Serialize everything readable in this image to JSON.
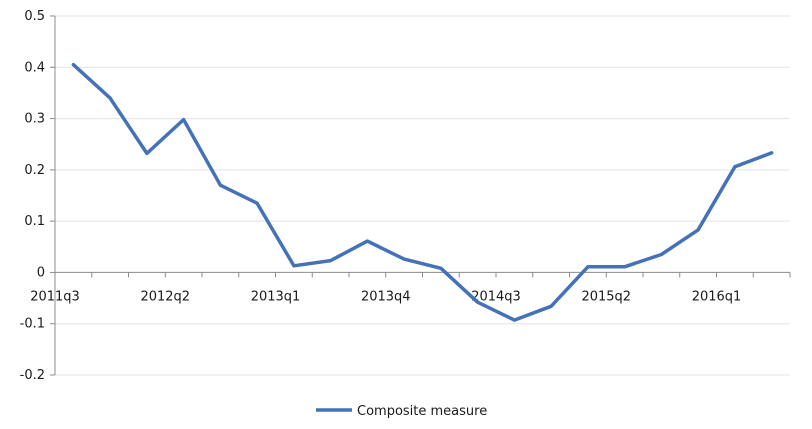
{
  "chart_data": {
    "type": "line",
    "title": "",
    "xlabel": "",
    "ylabel": "",
    "x": [
      "2011q3",
      "2011q4",
      "2012q1",
      "2012q2",
      "2012q3",
      "2012q4",
      "2013q1",
      "2013q2",
      "2013q3",
      "2013q4",
      "2014q1",
      "2014q2",
      "2014q3",
      "2014q4",
      "2015q1",
      "2015q2",
      "2015q3",
      "2015q4",
      "2016q1",
      "2016q2"
    ],
    "x_tick_labels": [
      "2011q3",
      "2012q2",
      "2013q1",
      "2013q4",
      "2014q3",
      "2015q2",
      "2016q1"
    ],
    "y_tick_labels": [
      "0.5",
      "0.4",
      "0.3",
      "0.2",
      "0.1",
      "0",
      "-0.1",
      "-0.2"
    ],
    "ylim": [
      -0.2,
      0.5
    ],
    "grid": true,
    "legend_position": "bottom",
    "series": [
      {
        "name": "Composite measure",
        "color": "#4372b8",
        "values": [
          0.405,
          0.34,
          0.232,
          0.298,
          0.17,
          0.135,
          0.013,
          0.023,
          0.061,
          0.026,
          0.008,
          -0.058,
          -0.093,
          -0.066,
          0.011,
          0.011,
          0.035,
          0.083,
          0.206,
          0.233
        ]
      }
    ]
  }
}
